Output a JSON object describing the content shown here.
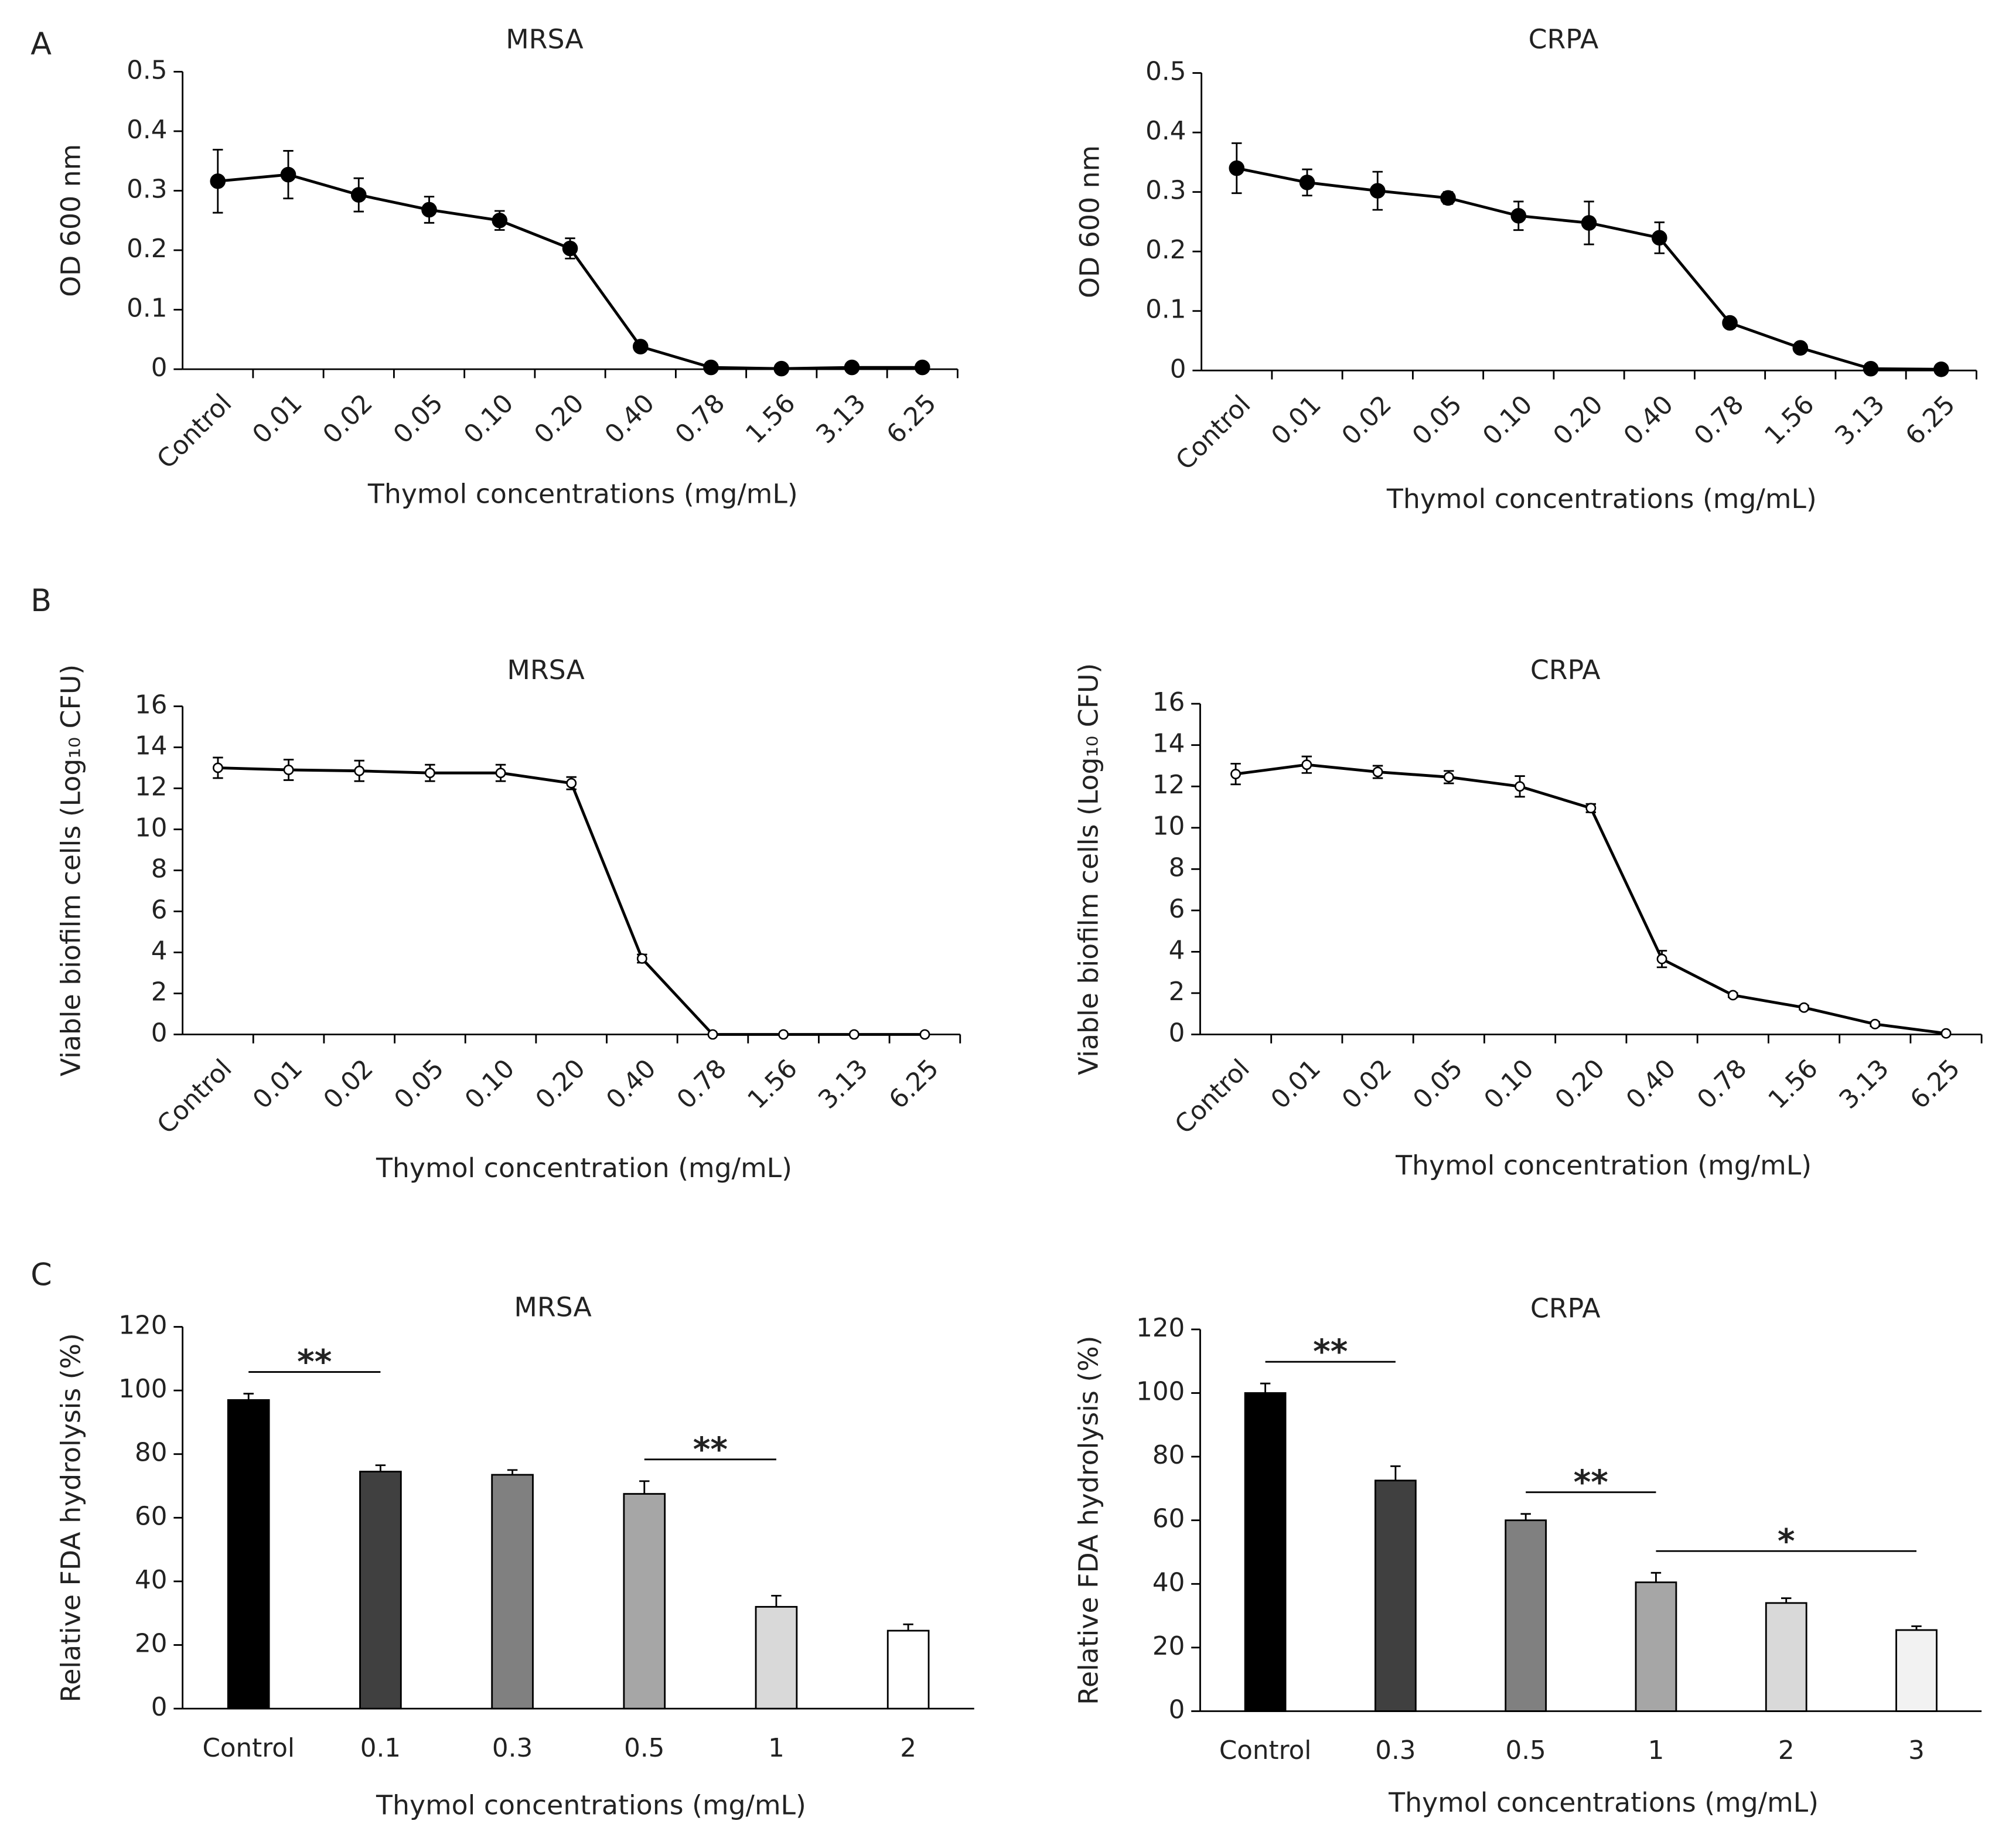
{
  "panel_labels": [
    "A",
    "B",
    "C"
  ],
  "chart_data": [
    {
      "type": "line",
      "title": "MRSA",
      "xlabel": "Thymol concentrations (mg/mL)",
      "ylabel": "OD 600 nm",
      "categories": [
        "Control",
        "0.01",
        "0.02",
        "0.05",
        "0.10",
        "0.20",
        "0.40",
        "0.78",
        "1.56",
        "3.13",
        "6.25"
      ],
      "values": [
        0.316,
        0.327,
        0.293,
        0.268,
        0.25,
        0.203,
        0.038,
        0.003,
        0.001,
        0.003,
        0.003
      ],
      "errors": [
        0.053,
        0.04,
        0.028,
        0.022,
        0.016,
        0.017,
        0.003,
        0.002,
        0.001,
        0.001,
        0.001
      ],
      "color": "#000000",
      "marker": "filled",
      "ylim": [
        0,
        0.5
      ],
      "yticks": [
        0,
        0.1,
        0.2,
        0.3,
        0.4,
        0.5
      ]
    },
    {
      "type": "line",
      "title": "CRPA",
      "xlabel": "Thymol concentrations (mg/mL)",
      "ylabel": "OD 600 nm",
      "categories": [
        "Control",
        "0.01",
        "0.02",
        "0.05",
        "0.10",
        "0.20",
        "0.40",
        "0.78",
        "1.56",
        "3.13",
        "6.25"
      ],
      "values": [
        0.34,
        0.316,
        0.302,
        0.29,
        0.26,
        0.248,
        0.223,
        0.08,
        0.038,
        0.003,
        0.002
      ],
      "errors": [
        0.042,
        0.022,
        0.032,
        0.01,
        0.024,
        0.036,
        0.026,
        0.004,
        0.003,
        0.001,
        0.001
      ],
      "color": "#000000",
      "marker": "filled",
      "ylim": [
        0,
        0.5
      ],
      "yticks": [
        0,
        0.1,
        0.2,
        0.3,
        0.4,
        0.5
      ]
    },
    {
      "type": "line",
      "title": "MRSA",
      "xlabel": "Thymol concentration (mg/mL)",
      "ylabel": "Viable biofilm cells (Log₁₀ CFU)",
      "categories": [
        "Control",
        "0.01",
        "0.02",
        "0.05",
        "0.10",
        "0.20",
        "0.40",
        "0.78",
        "1.56",
        "3.13",
        "6.25"
      ],
      "values": [
        13.0,
        12.9,
        12.85,
        12.75,
        12.75,
        12.25,
        3.7,
        0,
        0,
        0,
        0
      ],
      "errors": [
        0.5,
        0.5,
        0.5,
        0.4,
        0.4,
        0.3,
        0.2,
        0,
        0,
        0,
        0
      ],
      "color": "#000000",
      "marker": "open",
      "ylim": [
        0,
        16
      ],
      "yticks": [
        0,
        2,
        4,
        6,
        8,
        10,
        12,
        14,
        16
      ]
    },
    {
      "type": "line",
      "title": "CRPA",
      "xlabel": "Thymol concentration (mg/mL)",
      "ylabel": "Viable biofilm cells (Log₁₀ CFU)",
      "categories": [
        "Control",
        "0.01",
        "0.02",
        "0.05",
        "0.10",
        "0.20",
        "0.40",
        "0.78",
        "1.56",
        "3.13",
        "6.25"
      ],
      "values": [
        12.6,
        13.05,
        12.7,
        12.45,
        12.0,
        10.95,
        3.65,
        1.9,
        1.3,
        0.5,
        0.05
      ],
      "errors": [
        0.5,
        0.4,
        0.3,
        0.3,
        0.5,
        0.2,
        0.4,
        0.1,
        0.1,
        0.1,
        0.05
      ],
      "color": "#000000",
      "marker": "open",
      "ylim": [
        0,
        16
      ],
      "yticks": [
        0,
        2,
        4,
        6,
        8,
        10,
        12,
        14,
        16
      ]
    },
    {
      "type": "bar",
      "title": "MRSA",
      "xlabel": "Thymol concentrations (mg/mL)",
      "ylabel": "Relative FDA hydrolysis (%)",
      "categories": [
        "Control",
        "0.1",
        "0.3",
        "0.5",
        "1",
        "2"
      ],
      "values": [
        97,
        74.5,
        73.5,
        67.5,
        32,
        24.5
      ],
      "errors": [
        2,
        2,
        1.5,
        4,
        3.5,
        2
      ],
      "colors": [
        "#000000",
        "#404040",
        "#808080",
        "#a6a6a6",
        "#d9d9d9",
        "#ffffff"
      ],
      "ylim": [
        0,
        120
      ],
      "yticks": [
        0,
        20,
        40,
        60,
        80,
        100,
        120
      ],
      "annotations": [
        {
          "text": "**",
          "between": [
            0,
            1
          ]
        },
        {
          "text": "**",
          "between": [
            3,
            4
          ]
        }
      ]
    },
    {
      "type": "bar",
      "title": "CRPA",
      "xlabel": "Thymol concentrations (mg/mL)",
      "ylabel": "Relative FDA hydrolysis (%)",
      "categories": [
        "Control",
        "0.3",
        "0.5",
        "1",
        "2",
        "3"
      ],
      "values": [
        100,
        72.5,
        60,
        40.5,
        34,
        25.5
      ],
      "errors": [
        3,
        4.5,
        2,
        3,
        1.5,
        1.2
      ],
      "colors": [
        "#000000",
        "#404040",
        "#808080",
        "#a6a6a6",
        "#d9d9d9",
        "#f2f2f2"
      ],
      "ylim": [
        0,
        120
      ],
      "yticks": [
        0,
        20,
        40,
        60,
        80,
        100,
        120
      ],
      "annotations": [
        {
          "text": "**",
          "between": [
            0,
            1
          ]
        },
        {
          "text": "**",
          "between": [
            2,
            3
          ]
        },
        {
          "text": "*",
          "between": [
            3,
            5
          ]
        }
      ]
    }
  ]
}
